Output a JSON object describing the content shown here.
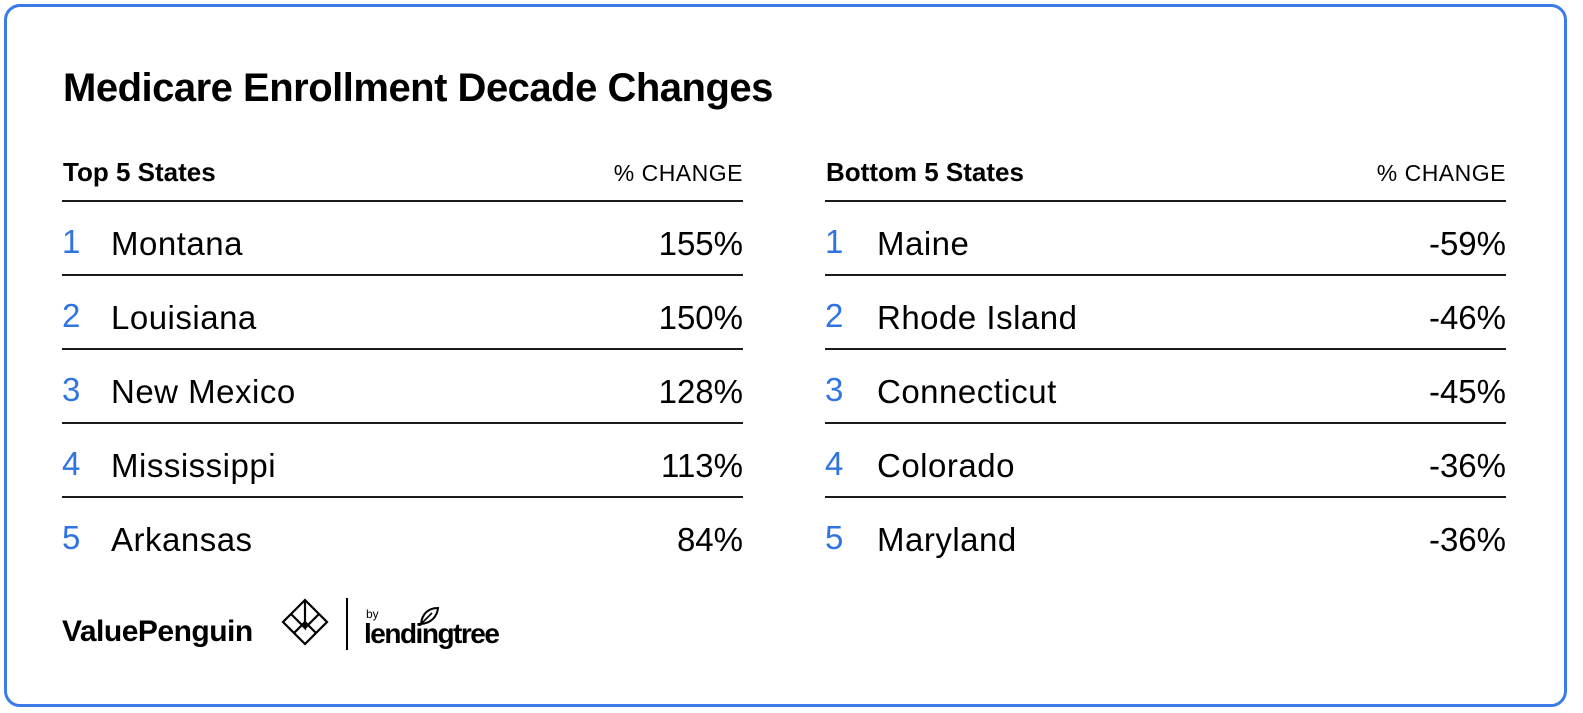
{
  "chart_data": [
    {
      "type": "table",
      "title": "Medicare Enrollment Decade Changes",
      "columns": [
        "Top 5 States",
        "% CHANGE"
      ],
      "rows": [
        {
          "rank": "1",
          "state": "Montana",
          "change": "155%",
          "value": 155
        },
        {
          "rank": "2",
          "state": "Louisiana",
          "change": "150%",
          "value": 150
        },
        {
          "rank": "3",
          "state": "New Mexico",
          "change": "128%",
          "value": 128
        },
        {
          "rank": "4",
          "state": "Mississippi",
          "change": "113%",
          "value": 113
        },
        {
          "rank": "5",
          "state": "Arkansas",
          "change": "84%",
          "value": 84
        }
      ]
    },
    {
      "type": "table",
      "title": "Medicare Enrollment Decade Changes",
      "columns": [
        "Bottom 5 States",
        "% CHANGE"
      ],
      "rows": [
        {
          "rank": "1",
          "state": "Maine",
          "change": "-59%",
          "value": -59
        },
        {
          "rank": "2",
          "state": "Rhode Island",
          "change": "-46%",
          "value": -46
        },
        {
          "rank": "3",
          "state": "Connecticut",
          "change": "-45%",
          "value": -45
        },
        {
          "rank": "4",
          "state": "Colorado",
          "change": "-36%",
          "value": -36
        },
        {
          "rank": "5",
          "state": "Maryland",
          "change": "-36%",
          "value": -36
        }
      ]
    }
  ],
  "page": {
    "title": "Medicare Enrollment Decade Changes"
  },
  "top_table": {
    "header_name": "Top 5 States",
    "header_change": "% CHANGE"
  },
  "bottom_table": {
    "header_name": "Bottom 5 States",
    "header_change": "% CHANGE"
  },
  "branding": {
    "brand_name": "ValuePenguin",
    "by_label": "by",
    "partner_name": "lendingtree",
    "logo_icon": "valuepenguin-mark-icon",
    "partner_icon": "lendingtree-leaf-icon"
  },
  "colors": {
    "border": "#3a7be8",
    "rank": "#2f74e0",
    "text": "#000000",
    "rule": "#1a1a1a"
  }
}
